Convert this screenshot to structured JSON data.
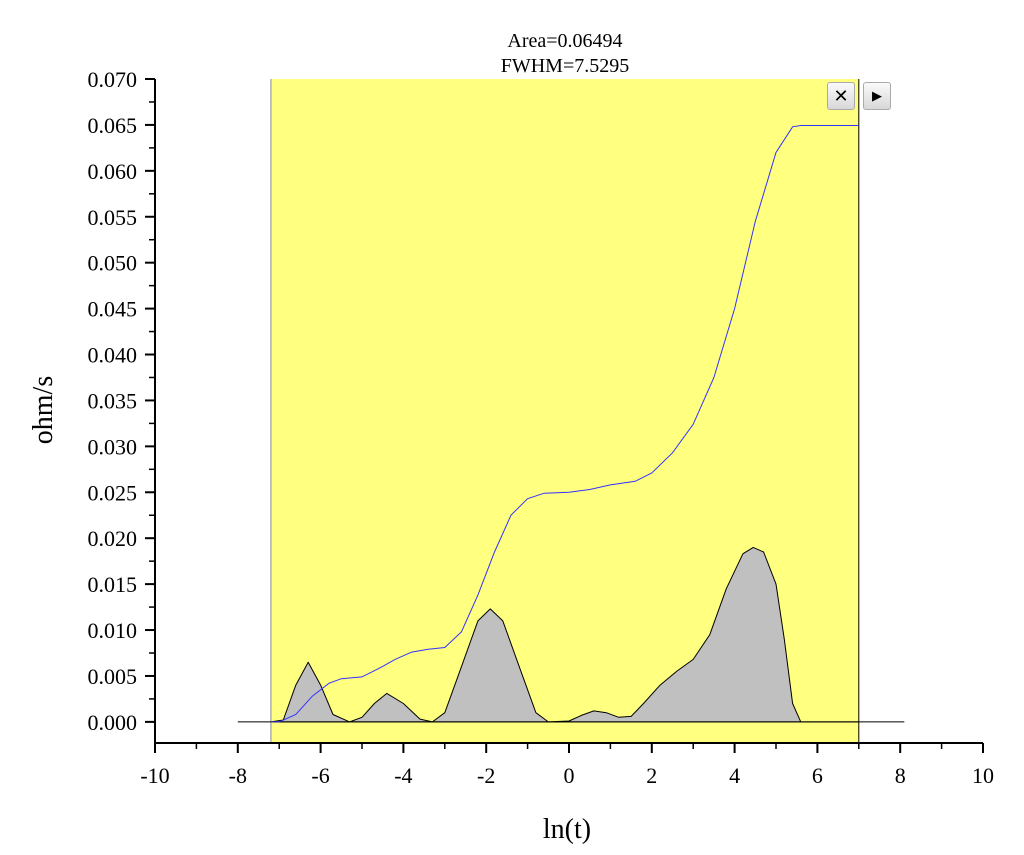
{
  "chart_data": {
    "type": "area",
    "title": "",
    "annotations": [
      "Area=0.06494",
      "FWHM=7.5295"
    ],
    "xlabel": "ln(t)",
    "ylabel": "ohm/s",
    "xlim": [
      -10,
      10
    ],
    "ylim": [
      -0.0023,
      0.07
    ],
    "xticks": [
      -10,
      -8,
      -6,
      -4,
      -2,
      0,
      2,
      4,
      6,
      8,
      10
    ],
    "xtick_labels": [
      "-10",
      "-8",
      "-6",
      "-4",
      "-2",
      "0",
      "2",
      "4",
      "6",
      "8",
      "10"
    ],
    "yticks": [
      0,
      0.005,
      0.01,
      0.015,
      0.02,
      0.025,
      0.03,
      0.035,
      0.04,
      0.045,
      0.05,
      0.055,
      0.06,
      0.065,
      0.07
    ],
    "ytick_labels": [
      "0.000",
      "0.005",
      "0.010",
      "0.015",
      "0.020",
      "0.025",
      "0.030",
      "0.035",
      "0.040",
      "0.045",
      "0.050",
      "0.055",
      "0.060",
      "0.065",
      "0.070"
    ],
    "grid": false,
    "integration_region": [
      -7.2,
      7.0
    ],
    "region_color": "#ffff80",
    "baseline": {
      "x": [
        -8,
        8.1
      ],
      "y": 0
    },
    "series": [
      {
        "kind": "filled-curve",
        "color": "#000000",
        "fill": "#c0c0c0",
        "x": [
          -7.2,
          -6.9,
          -6.6,
          -6.3,
          -6.0,
          -5.7,
          -5.3,
          -5.0,
          -4.7,
          -4.4,
          -4.0,
          -3.6,
          -3.3,
          -3.0,
          -2.6,
          -2.2,
          -1.9,
          -1.6,
          -1.2,
          -0.8,
          -0.5,
          0,
          0.3,
          0.6,
          0.9,
          1.2,
          1.5,
          1.8,
          2.2,
          2.6,
          3.0,
          3.4,
          3.8,
          4.2,
          4.45,
          4.7,
          5.0,
          5.2,
          5.4,
          5.6,
          7.0
        ],
        "y": [
          0,
          0.0002,
          0.004,
          0.0065,
          0.004,
          0.0008,
          0,
          0.0005,
          0.002,
          0.0031,
          0.002,
          0.0003,
          0,
          0.001,
          0.006,
          0.011,
          0.0123,
          0.011,
          0.006,
          0.001,
          0,
          0.0001,
          0.0007,
          0.0012,
          0.001,
          0.0005,
          0.0006,
          0.002,
          0.004,
          0.0055,
          0.0068,
          0.0095,
          0.0145,
          0.0183,
          0.019,
          0.0185,
          0.015,
          0.009,
          0.002,
          0,
          0
        ]
      },
      {
        "kind": "cumulative",
        "color": "#3333ff",
        "x": [
          -7.2,
          -7.0,
          -6.6,
          -6.2,
          -5.8,
          -5.5,
          -5.0,
          -4.6,
          -4.2,
          -3.8,
          -3.4,
          -3.0,
          -2.6,
          -2.2,
          -1.8,
          -1.4,
          -1.0,
          -0.6,
          0,
          0.5,
          1.0,
          1.6,
          2.0,
          2.5,
          3.0,
          3.5,
          4.0,
          4.5,
          5.0,
          5.4,
          5.6,
          7.0
        ],
        "y": [
          0,
          0,
          0.0008,
          0.0028,
          0.0042,
          0.0047,
          0.0049,
          0.0058,
          0.0068,
          0.0076,
          0.0079,
          0.0081,
          0.0098,
          0.0138,
          0.0185,
          0.0225,
          0.0243,
          0.0249,
          0.025,
          0.0253,
          0.0258,
          0.0262,
          0.0271,
          0.0293,
          0.0324,
          0.0375,
          0.045,
          0.0545,
          0.062,
          0.0648,
          0.06494,
          0.06494
        ]
      }
    ]
  },
  "controls": {
    "close_icon": "close-icon",
    "play_icon": "play-icon",
    "close_glyph": "✕",
    "play_glyph": "▶"
  }
}
